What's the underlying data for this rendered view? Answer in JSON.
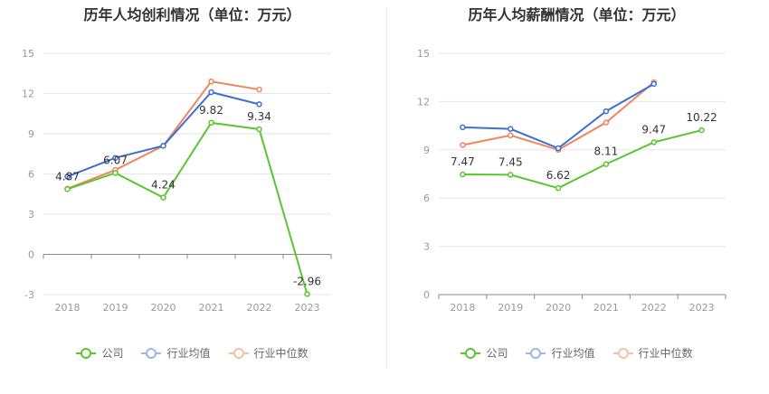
{
  "chart_data": [
    {
      "type": "line",
      "title": "历年人均创利情况（单位：万元）",
      "categories": [
        "2018",
        "2019",
        "2020",
        "2021",
        "2022",
        "2023"
      ],
      "yticks": [
        "-3",
        "0",
        "3",
        "6",
        "9",
        "12",
        "15"
      ],
      "ylim": [
        -3,
        15
      ],
      "grid": true,
      "legend_position": "bottom",
      "series": [
        {
          "name": "公司",
          "color": "#5ac62f",
          "values": [
            4.87,
            6.07,
            4.24,
            9.82,
            9.34,
            -2.96
          ],
          "labels": [
            "4.87",
            "6.07",
            "4.24",
            "9.82",
            "9.34",
            "-2.96"
          ]
        },
        {
          "name": "行业均值",
          "color": "#3b6fd4",
          "values": [
            5.8,
            7.2,
            8.1,
            12.1,
            11.2,
            null
          ]
        },
        {
          "name": "行业中位数",
          "color": "#f0845a",
          "values": [
            4.9,
            6.3,
            8.1,
            12.9,
            12.3,
            null
          ]
        }
      ]
    },
    {
      "type": "line",
      "title": "历年人均薪酬情况（单位：万元）",
      "categories": [
        "2018",
        "2019",
        "2020",
        "2021",
        "2022",
        "2023"
      ],
      "yticks": [
        "0",
        "3",
        "6",
        "9",
        "12",
        "15"
      ],
      "ylim": [
        0,
        15
      ],
      "grid": true,
      "legend_position": "bottom",
      "series": [
        {
          "name": "公司",
          "color": "#5ac62f",
          "values": [
            7.47,
            7.45,
            6.62,
            8.11,
            9.47,
            10.22
          ],
          "labels": [
            "7.47",
            "7.45",
            "6.62",
            "8.11",
            "9.47",
            "10.22"
          ]
        },
        {
          "name": "行业均值",
          "color": "#3b6fd4",
          "values": [
            10.4,
            10.3,
            9.1,
            11.4,
            13.1,
            null
          ]
        },
        {
          "name": "行业中位数",
          "color": "#f0845a",
          "values": [
            9.3,
            9.9,
            9.0,
            10.7,
            13.2,
            null
          ]
        }
      ]
    }
  ]
}
